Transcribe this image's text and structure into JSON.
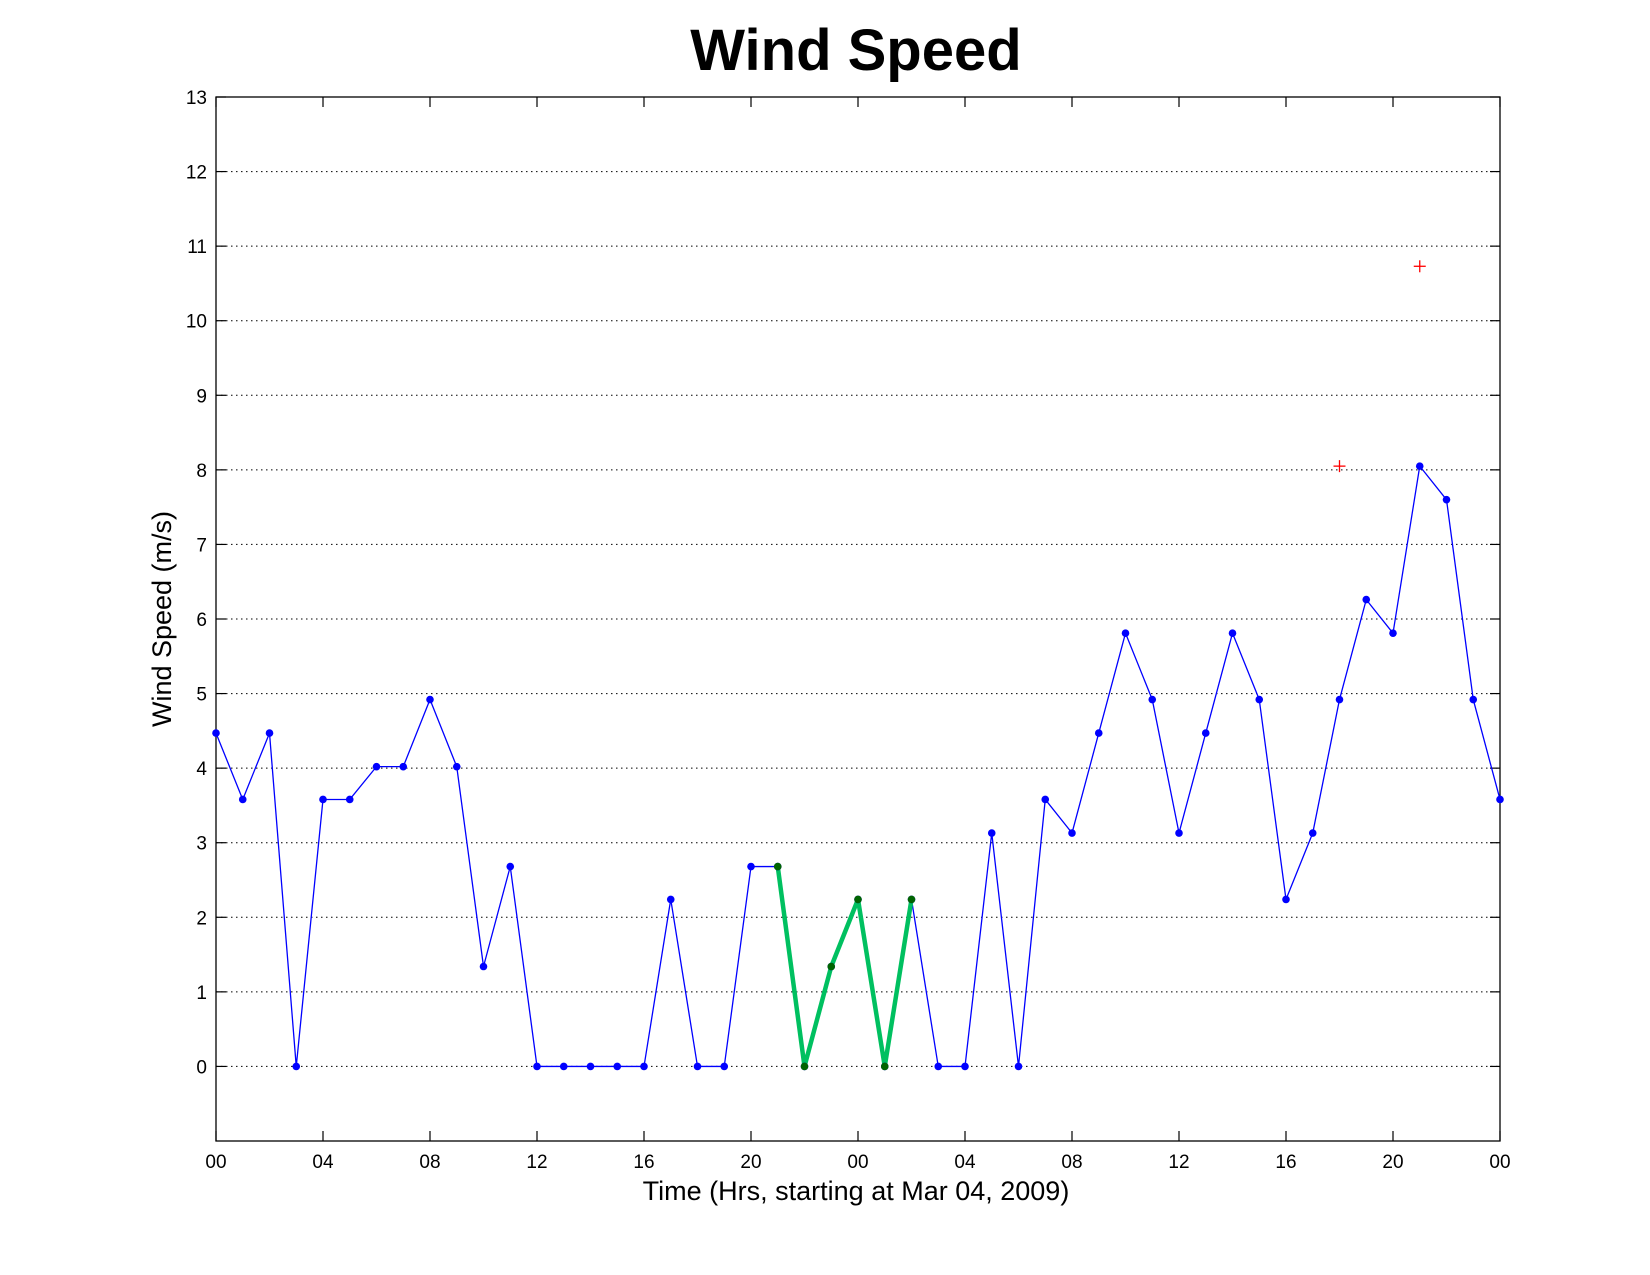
{
  "chart_data": {
    "type": "line",
    "title": "Wind Speed",
    "xlabel": "Time (Hrs, starting at Mar 04, 2009)",
    "ylabel": "Wind Speed (m/s)",
    "xlim": [
      0,
      48
    ],
    "ylim": [
      -1,
      13
    ],
    "grid": true,
    "x_ticks": [
      0,
      4,
      8,
      12,
      16,
      20,
      24,
      28,
      32,
      36,
      40,
      44,
      48
    ],
    "x_tick_labels": [
      "00",
      "04",
      "08",
      "12",
      "16",
      "20",
      "00",
      "04",
      "08",
      "12",
      "16",
      "20",
      "00"
    ],
    "y_ticks": [
      0,
      1,
      2,
      3,
      4,
      5,
      6,
      7,
      8,
      9,
      10,
      11,
      12,
      13
    ],
    "y_tick_labels": [
      "0",
      "1",
      "2",
      "3",
      "4",
      "5",
      "6",
      "7",
      "8",
      "9",
      "10",
      "11",
      "12",
      "13"
    ],
    "series": [
      {
        "style": "blue-line-dots",
        "color": "#0000ff",
        "x": [
          0,
          1,
          2,
          3,
          4,
          5,
          6,
          7,
          8,
          9,
          10,
          11,
          12,
          13,
          14,
          15,
          16,
          17,
          18,
          19,
          20,
          21,
          22,
          23,
          24,
          25,
          26,
          27,
          28,
          29,
          30,
          31,
          32,
          33,
          34,
          35,
          36,
          37,
          38,
          39,
          40,
          41,
          42,
          43,
          44,
          45,
          46,
          47,
          48
        ],
        "y": [
          4.47,
          3.58,
          4.47,
          0,
          3.58,
          3.58,
          4.02,
          4.02,
          4.92,
          4.02,
          1.34,
          2.68,
          0,
          0,
          0,
          0,
          0,
          2.24,
          0,
          0,
          2.68,
          2.68,
          0,
          1.34,
          2.24,
          0,
          2.24,
          0,
          0,
          3.13,
          0,
          3.58,
          3.13,
          4.47,
          5.81,
          4.92,
          3.13,
          4.47,
          5.81,
          4.92,
          2.24,
          3.13,
          4.92,
          6.26,
          5.81,
          8.05,
          7.6,
          4.92,
          3.58
        ]
      },
      {
        "style": "green-thick-line",
        "color": "#00c060",
        "marker_color": "#006400",
        "x": [
          21,
          22,
          23,
          24,
          25,
          26
        ],
        "y": [
          2.68,
          0,
          1.34,
          2.24,
          0,
          2.24
        ]
      },
      {
        "style": "red-plus-markers",
        "color": "#ff0000",
        "x": [
          42,
          45
        ],
        "y": [
          8.05,
          10.73
        ]
      }
    ]
  }
}
